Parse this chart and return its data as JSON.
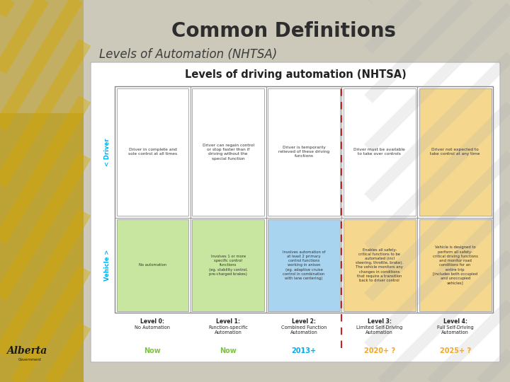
{
  "title": "Common Definitions",
  "subtitle": "Levels of Automation (NHTSA)",
  "bg_color": "#ccc9bb",
  "title_color": "#2d2d2d",
  "subtitle_color": "#3d3d3d",
  "chart_title": "Levels of driving automation (NHTSA)",
  "levels": [
    "Level 0:",
    "Level 1:",
    "Level 2:",
    "Level 3:",
    "Level 4:"
  ],
  "level_names": [
    "No Automation",
    "Function-specific\nAutomation",
    "Combined Function\nAutomation",
    "Limited Self-Driving\nAutomation",
    "Full Self-Driving\nAutomation"
  ],
  "timelines": [
    "Now",
    "Now",
    "2013+",
    "2020+ ?",
    "2025+ ?"
  ],
  "timeline_colors": [
    "#7dc243",
    "#7dc243",
    "#00aeef",
    "#f5a623",
    "#f5a623"
  ],
  "driver_texts": [
    "Driver in complete and\nsole control at all times",
    "Driver can regain control\nor stop faster than if\ndriving without the\nspecial function",
    "Driver is temporarily\nrelieved of these driving\nfunctions",
    "Driver must be available\nto take over controls",
    "Driver not expected to\ntake control at any time"
  ],
  "vehicle_texts": [
    "No automation",
    "Involves 1 or more\nspecific control\nfunctions\n(eg. stability control,\npre-charged brakes)",
    "Involves automation of\nat least 2 primary\ncontrol functions\nworking in anison\n(eg. adaptive cruise\ncontrol in combination\nwith lane centering)",
    "Enables all safety-\ncritical functions to be\nautomated (incl\nsteering, throttle, brake).\nThe vehicle monitors any\nchanges in conditions\nthat require a transition\nback to driver control",
    "Vehicle is designed to\nperform all safety-\ncritical driving functions\nand monitor road\nconditions for an\nentire trip\n[includes both occupied\nand unoccupied\nvehicles]"
  ],
  "box_colors_vehicle": [
    "#c8e6a0",
    "#c8e6a0",
    "#a8d4f0",
    "#f5d78e",
    "#f5d78e"
  ],
  "driver_label_color": "#00aeef",
  "vehicle_label_color": "#00aeef",
  "golden_strip_color": "#b8960a",
  "golden_stripe_color": "#d4a800",
  "grey_stripe_color": "#aaaaaa"
}
